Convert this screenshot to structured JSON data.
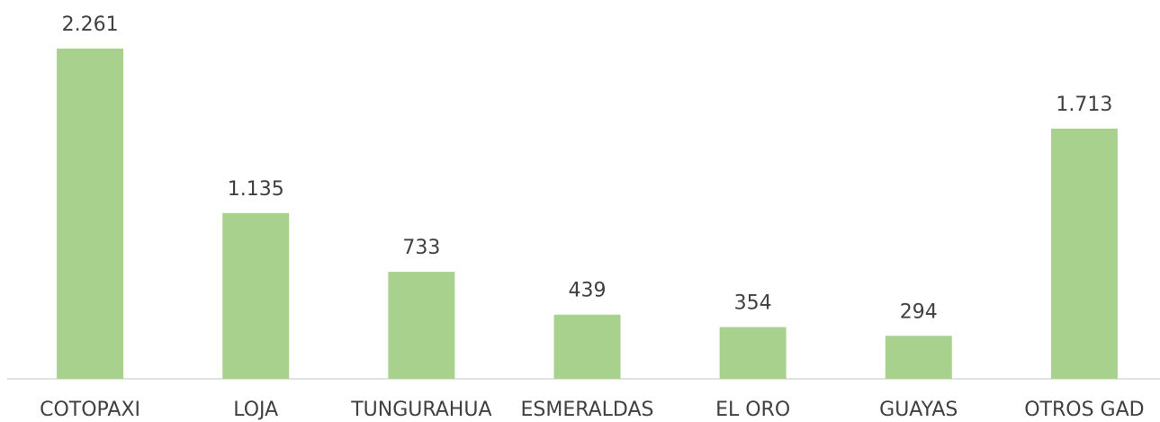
{
  "chart_data": {
    "type": "bar",
    "categories": [
      "COTOPAXI",
      "LOJA",
      "TUNGURAHUA",
      "ESMERALDAS",
      "EL ORO",
      "GUAYAS",
      "OTROS GAD"
    ],
    "values": [
      2261,
      1135,
      733,
      439,
      354,
      294,
      1713
    ],
    "value_labels": [
      "2.261",
      "1.135",
      "733",
      "439",
      "354",
      "294",
      "1.713"
    ],
    "color": "#a9d18e",
    "ylim": [
      0,
      2500
    ]
  }
}
